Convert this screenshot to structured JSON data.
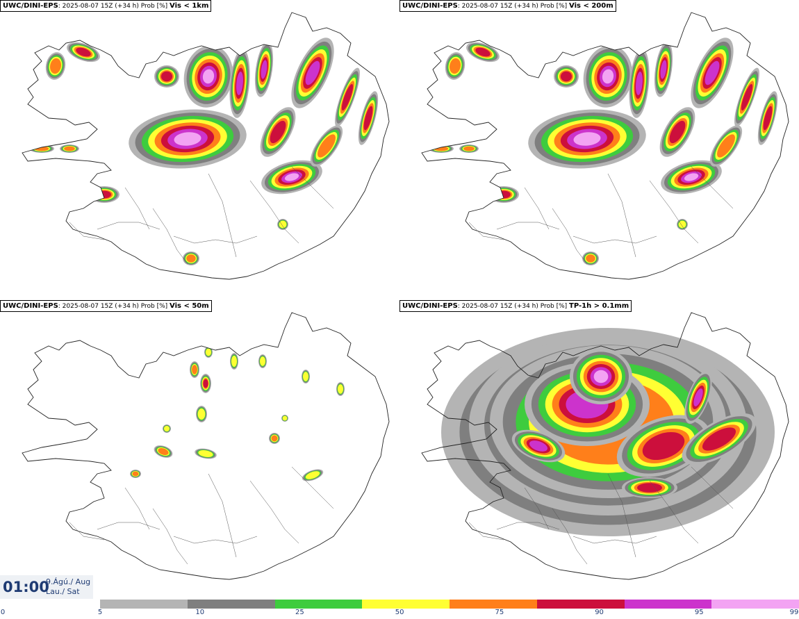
{
  "panels": [
    {
      "source": "UWC/DINI-EPS",
      "run": ": 2025-08-07 15Z (+34 h) Prob [%]",
      "threshold": "Vis < 1km",
      "fill_level": "high"
    },
    {
      "source": "UWC/DINI-EPS",
      "run": ": 2025-08-07 15Z (+34 h) Prob [%]",
      "threshold": "Vis < 200m",
      "fill_level": "high"
    },
    {
      "source": "UWC/DINI-EPS",
      "run": ": 2025-08-07 15Z (+34 h) Prob [%]",
      "threshold": "Vis < 50m",
      "fill_level": "low"
    },
    {
      "source": "UWC/DINI-EPS",
      "run": ": 2025-08-07 15Z (+34 h) Prob [%]",
      "threshold": "TP-1h > 0.1mm",
      "fill_level": "precip"
    }
  ],
  "valid_time": {
    "time": "01:00",
    "date_line1": "9.Ágú./ Aug",
    "date_line2": "Lau./ Sat"
  },
  "legend": {
    "ticks": [
      "0",
      "5",
      "10",
      "25",
      "50",
      "75",
      "90",
      "95",
      "99"
    ],
    "colors": [
      "#b4b4b4",
      "#7f7f7f",
      "#3ecc3e",
      "#ffff33",
      "#ff7f1a",
      "#cc0f3c",
      "#cc33cc",
      "#f3a3f3"
    ]
  }
}
